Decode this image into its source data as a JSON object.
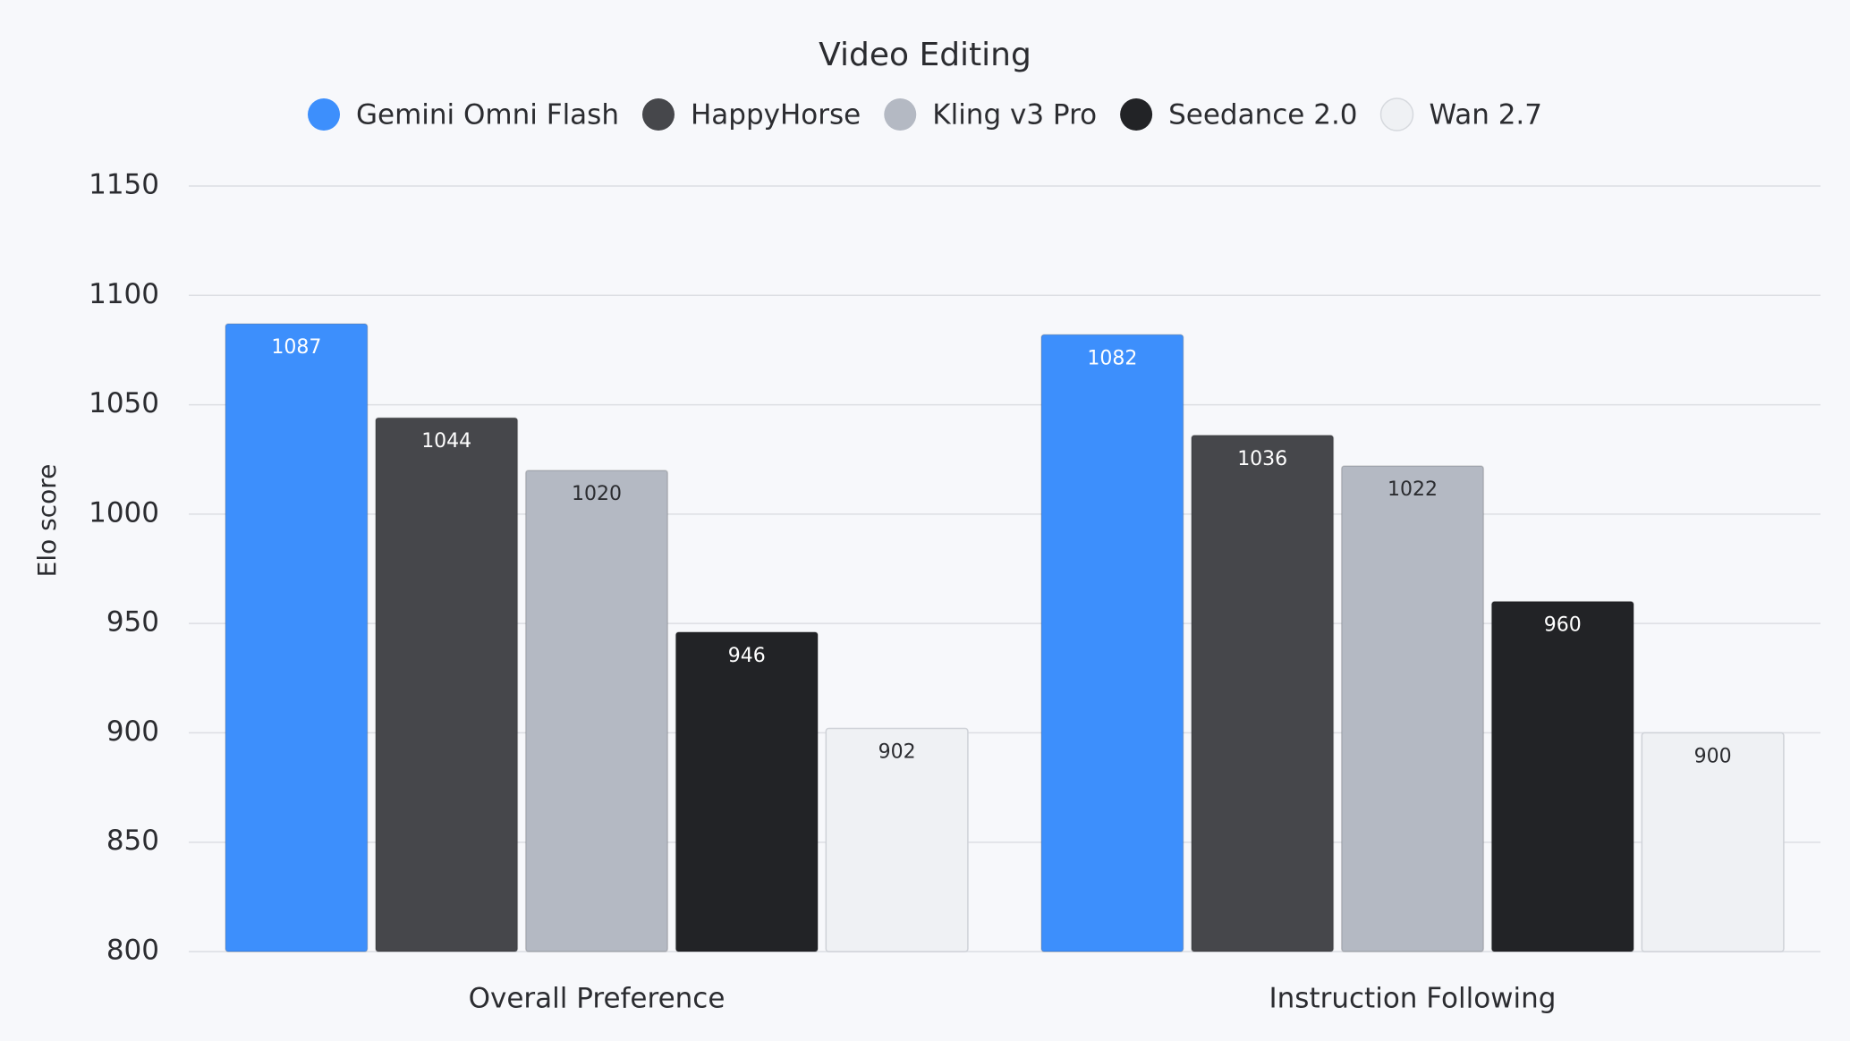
{
  "chart_data": {
    "type": "bar",
    "title": "Video Editing",
    "y_label": "Elo score",
    "categories": [
      "Overall Preference",
      "Instruction Following"
    ],
    "series": [
      {
        "name": "Gemini Omni Flash",
        "color": "#3d8ffc",
        "values": [
          1087,
          1082
        ]
      },
      {
        "name": "HappyHorse",
        "color": "#46474b",
        "values": [
          1044,
          1036
        ]
      },
      {
        "name": "Kling v3 Pro",
        "color": "#b4b9c3",
        "values": [
          1020,
          1022
        ]
      },
      {
        "name": "Seedance 2.0",
        "color": "#222326",
        "values": [
          946,
          960
        ]
      },
      {
        "name": "Wan 2.7",
        "color": "#eff1f4",
        "values": [
          902,
          900
        ]
      }
    ],
    "ylim": [
      800,
      1150
    ],
    "yticks": [
      800,
      850,
      900,
      950,
      1000,
      1050,
      1100,
      1150
    ],
    "grid": true,
    "legend": "top"
  }
}
